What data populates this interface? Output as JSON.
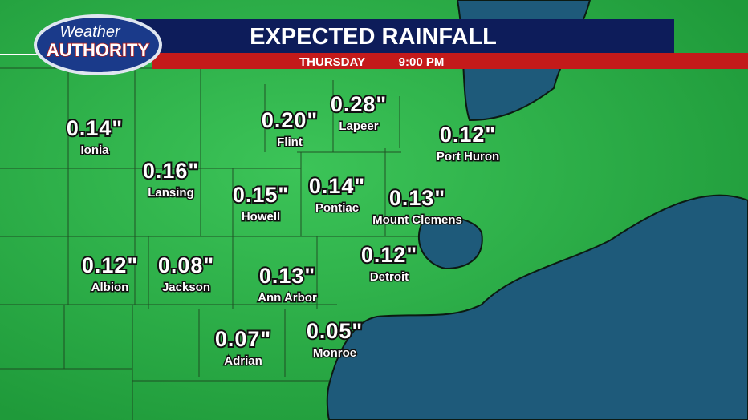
{
  "header": {
    "logo_top": "Weather",
    "logo_bottom": "AUTHORITY",
    "title": "EXPECTED RAINFALL",
    "day": "THURSDAY",
    "time": "9:00 PM"
  },
  "cities": [
    {
      "name": "Ionia",
      "amount": "0.14\""
    },
    {
      "name": "Lansing",
      "amount": "0.16\""
    },
    {
      "name": "Flint",
      "amount": "0.20\""
    },
    {
      "name": "Lapeer",
      "amount": "0.28\""
    },
    {
      "name": "Port Huron",
      "amount": "0.12\""
    },
    {
      "name": "Howell",
      "amount": "0.15\""
    },
    {
      "name": "Pontiac",
      "amount": "0.14\""
    },
    {
      "name": "Mount Clemens",
      "amount": "0.13\""
    },
    {
      "name": "Albion",
      "amount": "0.12\""
    },
    {
      "name": "Jackson",
      "amount": "0.08\""
    },
    {
      "name": "Ann Arbor",
      "amount": "0.13\""
    },
    {
      "name": "Detroit",
      "amount": "0.12\""
    },
    {
      "name": "Adrian",
      "amount": "0.07\""
    },
    {
      "name": "Monroe",
      "amount": "0.05\""
    }
  ]
}
